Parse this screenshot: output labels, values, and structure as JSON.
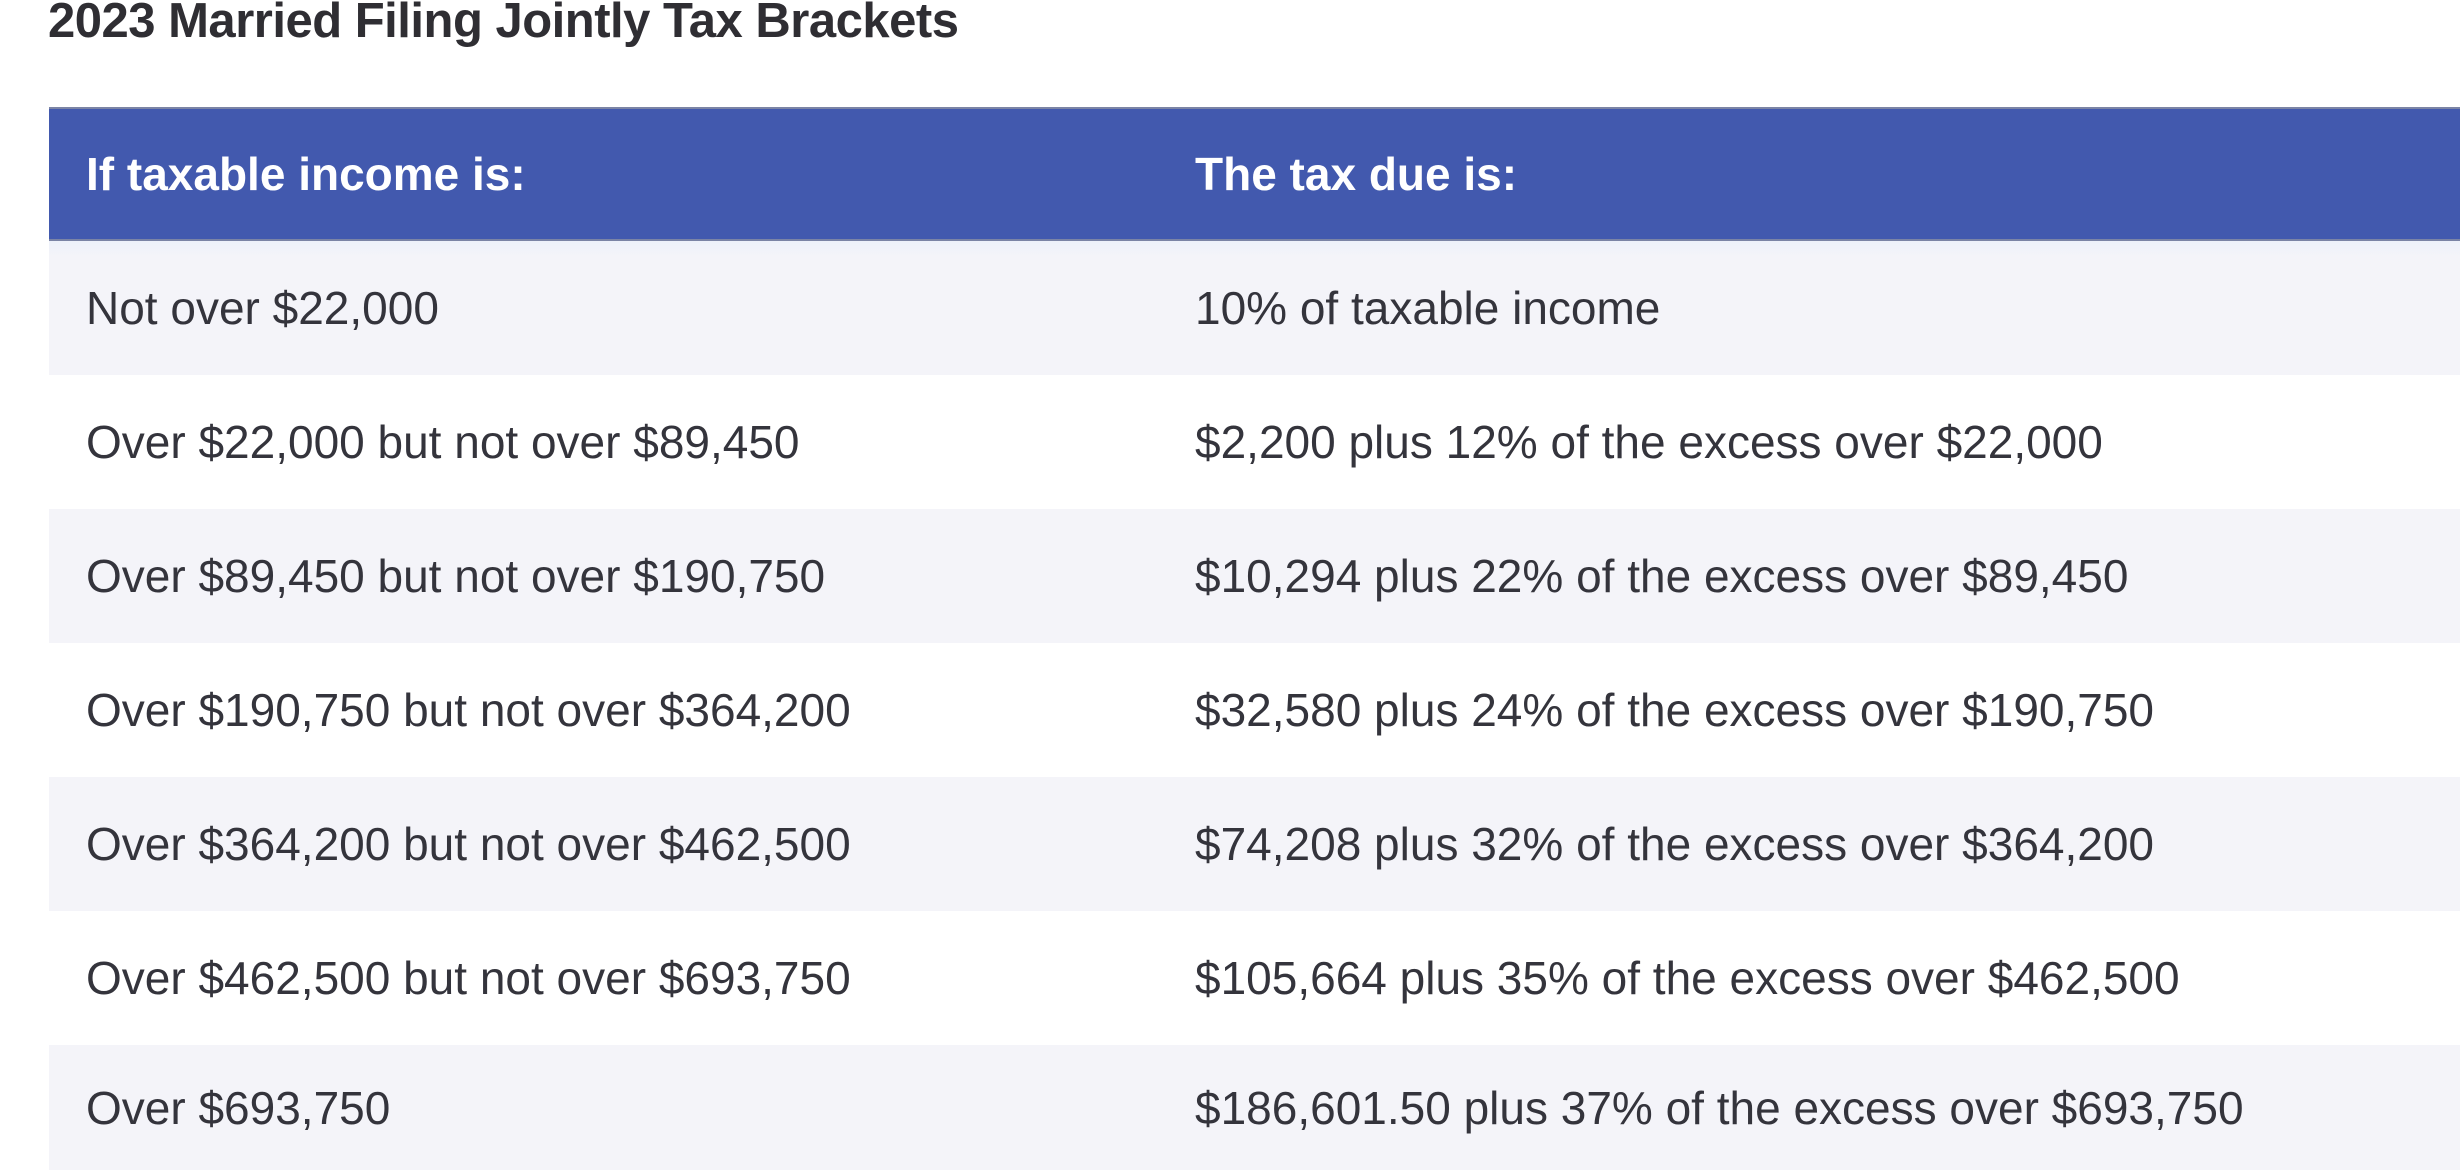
{
  "page": {
    "title": "2023 Married Filing Jointly Tax Brackets"
  },
  "table": {
    "columns": [
      {
        "label": "If taxable income is:"
      },
      {
        "label": "The tax due is:"
      }
    ],
    "rows": [
      {
        "income": "Not over $22,000",
        "tax": "10% of taxable income"
      },
      {
        "income": "Over $22,000 but not over $89,450",
        "tax": "$2,200 plus 12% of the excess over $22,000"
      },
      {
        "income": "Over $89,450 but not over $190,750",
        "tax": "$10,294 plus 22% of the excess over $89,450"
      },
      {
        "income": "Over $190,750 but not over $364,200",
        "tax": "$32,580 plus 24% of the excess over $190,750"
      },
      {
        "income": "Over $364,200 but not over $462,500",
        "tax": "$74,208 plus 32% of the excess over $364,200"
      },
      {
        "income": "Over $462,500 but not over $693,750",
        "tax": "$105,664 plus 35% of the excess over $462,500"
      },
      {
        "income": "Over $693,750",
        "tax": "$186,601.50 plus 37% of the excess over $693,750"
      }
    ]
  },
  "colors": {
    "header_bg": "#4259ae",
    "header_text": "#ffffff",
    "header_border": "#7b84a5",
    "row_bg": "#ffffff",
    "row_alt_bg": "#f4f4f9",
    "body_text": "#34343c",
    "title_text": "#2f2e33",
    "page_bg": "#ffffff"
  }
}
